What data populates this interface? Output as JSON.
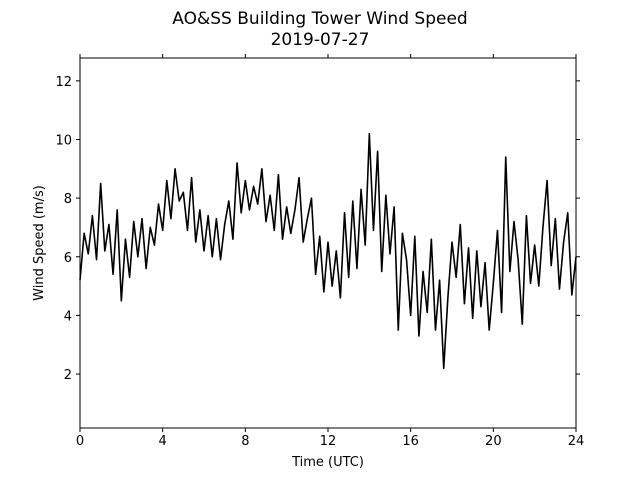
{
  "chart_data": {
    "type": "line",
    "title": "AO&SS Building Tower Wind Speed",
    "subtitle": "2019-07-27",
    "x_label": "Time (UTC)",
    "y_label": "Wind Speed (m/s)",
    "xlim": [
      0,
      24
    ],
    "xticks": [
      0,
      4,
      8,
      12,
      16,
      20,
      24
    ],
    "ylim": [
      0.16,
      12.78
    ],
    "yticks": [
      2,
      4,
      6,
      8,
      10,
      12
    ],
    "series": [
      {
        "color": "#000000",
        "x": [
          0,
          0.2,
          0.4,
          0.6,
          0.8,
          1.0,
          1.2,
          1.4,
          1.6,
          1.8,
          2.0,
          2.2,
          2.4,
          2.6,
          2.8,
          3.0,
          3.2,
          3.4,
          3.6,
          3.8,
          4.0,
          4.2,
          4.4,
          4.6,
          4.8,
          5.0,
          5.2,
          5.4,
          5.6,
          5.8,
          6.0,
          6.2,
          6.4,
          6.6,
          6.8,
          7.0,
          7.2,
          7.4,
          7.6,
          7.8,
          8.0,
          8.2,
          8.4,
          8.6,
          8.8,
          9.0,
          9.2,
          9.4,
          9.6,
          9.8,
          10.0,
          10.2,
          10.4,
          10.6,
          10.8,
          11.0,
          11.2,
          11.4,
          11.6,
          11.8,
          12.0,
          12.2,
          12.4,
          12.6,
          12.8,
          13.0,
          13.2,
          13.4,
          13.6,
          13.8,
          14.0,
          14.2,
          14.4,
          14.6,
          14.8,
          15.0,
          15.2,
          15.4,
          15.6,
          15.8,
          16.0,
          16.2,
          16.4,
          16.6,
          16.8,
          17.0,
          17.2,
          17.4,
          17.6,
          17.8,
          18.0,
          18.2,
          18.4,
          18.6,
          18.8,
          19.0,
          19.2,
          19.4,
          19.6,
          19.8,
          20.0,
          20.2,
          20.4,
          20.6,
          20.8,
          21.0,
          21.2,
          21.4,
          21.6,
          21.8,
          22.0,
          22.2,
          22.4,
          22.6,
          22.8,
          23.0,
          23.2,
          23.4,
          23.6,
          23.8,
          24.0
        ],
        "values": [
          5.2,
          6.8,
          6.1,
          7.4,
          5.9,
          8.5,
          6.2,
          7.1,
          5.4,
          7.6,
          4.5,
          6.6,
          5.3,
          7.2,
          6.0,
          7.3,
          5.6,
          7.0,
          6.4,
          7.8,
          6.9,
          8.6,
          7.3,
          9.0,
          7.9,
          8.2,
          6.9,
          8.7,
          6.5,
          7.6,
          6.2,
          7.4,
          6.0,
          7.3,
          5.9,
          7.1,
          7.9,
          6.6,
          9.2,
          7.5,
          8.6,
          7.6,
          8.4,
          7.8,
          9.0,
          7.2,
          8.1,
          6.9,
          8.8,
          6.6,
          7.7,
          6.8,
          7.6,
          8.7,
          6.5,
          7.3,
          8.0,
          5.4,
          6.7,
          4.8,
          6.5,
          5.0,
          6.2,
          4.6,
          7.5,
          5.3,
          7.9,
          5.6,
          8.3,
          6.4,
          10.2,
          6.9,
          9.6,
          5.5,
          8.1,
          6.1,
          7.7,
          3.5,
          6.8,
          5.9,
          4.0,
          6.7,
          3.3,
          5.5,
          4.1,
          6.6,
          3.5,
          5.2,
          2.2,
          4.6,
          6.5,
          5.3,
          7.1,
          4.4,
          6.3,
          3.9,
          6.2,
          4.3,
          5.8,
          3.5,
          5.1,
          6.9,
          4.1,
          9.4,
          5.5,
          7.2,
          5.9,
          3.7,
          7.4,
          5.1,
          6.4,
          5.0,
          7.0,
          8.6,
          5.7,
          7.3,
          4.9,
          6.5,
          7.5,
          4.7,
          6.0
        ]
      }
    ]
  }
}
